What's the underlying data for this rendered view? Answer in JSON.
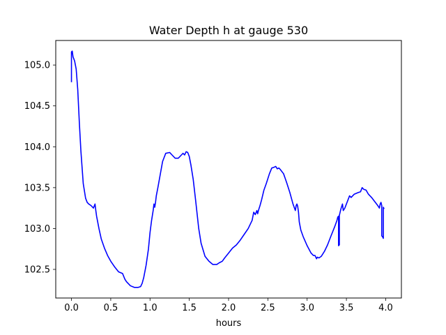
{
  "chart_data": {
    "type": "line",
    "title": "Water Depth h at gauge 530",
    "xlabel": "hours",
    "ylabel": "",
    "xlim": [
      -0.2,
      4.2
    ],
    "ylim": [
      102.15,
      105.3
    ],
    "grid": false,
    "legend": "none",
    "xticks": [
      0.0,
      0.5,
      1.0,
      1.5,
      2.0,
      2.5,
      3.0,
      3.5,
      4.0
    ],
    "xtick_labels": [
      "0.0",
      "0.5",
      "1.0",
      "1.5",
      "2.0",
      "2.5",
      "3.0",
      "3.5",
      "4.0"
    ],
    "yticks": [
      102.5,
      103.0,
      103.5,
      104.0,
      104.5,
      105.0
    ],
    "ytick_labels": [
      "102.5",
      "103.0",
      "103.5",
      "104.0",
      "104.5",
      "105.0"
    ],
    "series": [
      {
        "color": "#0000ff",
        "x": [
          0.0,
          0.0,
          0.01,
          0.02,
          0.04,
          0.06,
          0.08,
          0.1,
          0.12,
          0.15,
          0.18,
          0.2,
          0.22,
          0.25,
          0.28,
          0.3,
          0.31,
          0.32,
          0.33,
          0.34,
          0.35,
          0.38,
          0.42,
          0.46,
          0.5,
          0.55,
          0.6,
          0.65,
          0.68,
          0.7,
          0.72,
          0.75,
          0.8,
          0.85,
          0.88,
          0.9,
          0.92,
          0.95,
          0.98,
          1.0,
          1.02,
          1.04,
          1.05,
          1.06,
          1.07,
          1.08,
          1.1,
          1.13,
          1.16,
          1.2,
          1.25,
          1.28,
          1.32,
          1.36,
          1.4,
          1.42,
          1.44,
          1.46,
          1.48,
          1.5,
          1.52,
          1.55,
          1.58,
          1.62,
          1.65,
          1.7,
          1.75,
          1.8,
          1.85,
          1.88,
          1.92,
          1.95,
          2.0,
          2.05,
          2.1,
          2.15,
          2.2,
          2.25,
          2.3,
          2.32,
          2.34,
          2.36,
          2.37,
          2.38,
          2.39,
          2.4,
          2.42,
          2.45,
          2.48,
          2.52,
          2.55,
          2.58,
          2.6,
          2.62,
          2.64,
          2.66,
          2.7,
          2.74,
          2.78,
          2.82,
          2.85,
          2.86,
          2.87,
          2.88,
          2.89,
          2.9,
          2.92,
          2.95,
          3.0,
          3.05,
          3.08,
          3.1,
          3.12,
          3.13,
          3.15,
          3.18,
          3.22,
          3.26,
          3.3,
          3.35,
          3.38,
          3.39,
          3.4,
          3.4,
          3.41,
          3.41,
          3.42,
          3.43,
          3.45,
          3.46,
          3.48,
          3.5,
          3.52,
          3.54,
          3.56,
          3.6,
          3.65,
          3.68,
          3.7,
          3.72,
          3.75,
          3.78,
          3.82,
          3.86,
          3.9,
          3.92,
          3.93,
          3.94,
          3.95,
          3.95,
          3.96,
          3.97,
          3.97,
          3.98
        ],
        "y": [
          104.79,
          105.16,
          105.17,
          105.1,
          105.05,
          104.95,
          104.7,
          104.3,
          103.95,
          103.55,
          103.37,
          103.32,
          103.3,
          103.28,
          103.25,
          103.3,
          103.22,
          103.15,
          103.1,
          103.05,
          103.0,
          102.87,
          102.76,
          102.67,
          102.6,
          102.53,
          102.47,
          102.45,
          102.38,
          102.35,
          102.33,
          102.3,
          102.28,
          102.28,
          102.29,
          102.33,
          102.4,
          102.55,
          102.75,
          102.95,
          103.1,
          103.22,
          103.3,
          103.26,
          103.32,
          103.4,
          103.5,
          103.66,
          103.82,
          103.92,
          103.93,
          103.9,
          103.86,
          103.86,
          103.9,
          103.92,
          103.9,
          103.94,
          103.93,
          103.88,
          103.78,
          103.6,
          103.35,
          103.0,
          102.82,
          102.66,
          102.6,
          102.56,
          102.56,
          102.58,
          102.6,
          102.64,
          102.7,
          102.76,
          102.8,
          102.86,
          102.93,
          103.0,
          103.1,
          103.2,
          103.17,
          103.22,
          103.18,
          103.22,
          103.25,
          103.28,
          103.35,
          103.47,
          103.55,
          103.67,
          103.74,
          103.75,
          103.76,
          103.73,
          103.74,
          103.72,
          103.67,
          103.56,
          103.44,
          103.3,
          103.22,
          103.28,
          103.3,
          103.27,
          103.2,
          103.08,
          102.98,
          102.9,
          102.79,
          102.7,
          102.67,
          102.67,
          102.63,
          102.65,
          102.64,
          102.66,
          102.72,
          102.8,
          102.9,
          103.02,
          103.1,
          103.14,
          103.15,
          102.79,
          102.8,
          103.16,
          103.2,
          103.24,
          103.3,
          103.22,
          103.25,
          103.3,
          103.35,
          103.4,
          103.38,
          103.42,
          103.44,
          103.45,
          103.5,
          103.48,
          103.47,
          103.42,
          103.38,
          103.33,
          103.28,
          103.25,
          103.3,
          103.32,
          103.28,
          102.91,
          102.9,
          102.88,
          103.26,
          103.24
        ]
      }
    ]
  }
}
